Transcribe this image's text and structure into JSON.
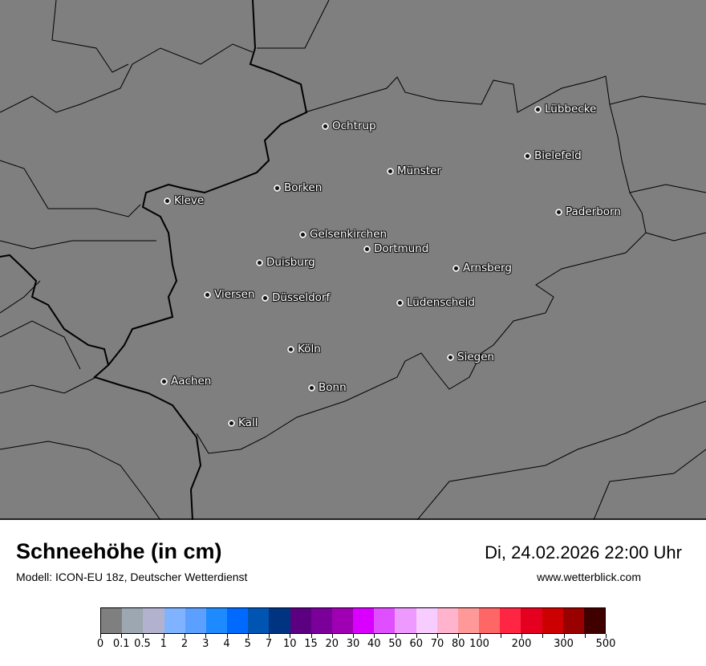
{
  "header": {
    "title": "Schneehöhe (in cm)",
    "model": "Modell: ICON-EU 18z, Deutscher Wetterdienst",
    "datetime": "Di, 24.02.2026 22:00 Uhr",
    "website": "www.wetterblick.com"
  },
  "map": {
    "background_color": "#7f7f7f",
    "value_shown": "0 cm (no snow)",
    "cities": [
      {
        "name": "Ochtrup"
      },
      {
        "name": "Lübbecke"
      },
      {
        "name": "Bielefeld"
      },
      {
        "name": "Münster"
      },
      {
        "name": "Borken"
      },
      {
        "name": "Kleve"
      },
      {
        "name": "Paderborn"
      },
      {
        "name": "Gelsenkirchen"
      },
      {
        "name": "Dortmund"
      },
      {
        "name": "Duisburg"
      },
      {
        "name": "Arnsberg"
      },
      {
        "name": "Viersen"
      },
      {
        "name": "Düsseldorf"
      },
      {
        "name": "Lüdenscheid"
      },
      {
        "name": "Köln"
      },
      {
        "name": "Siegen"
      },
      {
        "name": "Aachen"
      },
      {
        "name": "Bonn"
      },
      {
        "name": "Kall"
      }
    ]
  },
  "legend": {
    "tick_labels": [
      "0",
      "0.1",
      "0.5",
      "1",
      "2",
      "3",
      "4",
      "5",
      "7",
      "10",
      "15",
      "20",
      "30",
      "40",
      "50",
      "60",
      "70",
      "80",
      "100",
      "",
      "200",
      "",
      "300",
      "",
      "500"
    ],
    "colors": [
      "#7f7f7f",
      "#9ca7b2",
      "#b2b2cf",
      "#80b3ff",
      "#5ca0ff",
      "#1e8aff",
      "#006aff",
      "#0055b3",
      "#003380",
      "#5a0080",
      "#7a0099",
      "#a000b3",
      "#d900ff",
      "#e04fff",
      "#ee99ff",
      "#f7ccff",
      "#ffb3cc",
      "#ff9999",
      "#ff6666",
      "#ff2644",
      "#e6001f",
      "#cc0000",
      "#990000",
      "#400000"
    ]
  }
}
